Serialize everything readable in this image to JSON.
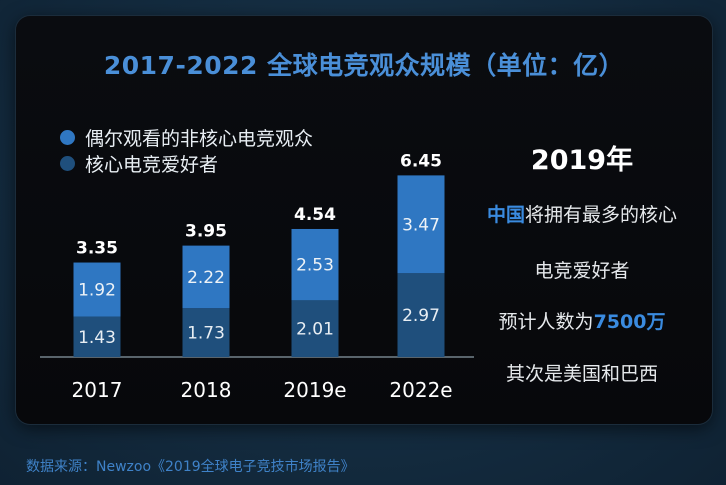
{
  "colors": {
    "segment_non_core": "#2f77c2",
    "segment_core": "#1f4f7c",
    "title": "#4a8fd8",
    "highlight": "#3a8be0"
  },
  "chart_data": {
    "type": "bar",
    "stacked": true,
    "title": "2017-2022 全球电竞观众规模（单位：亿）",
    "categories": [
      "2017",
      "2018",
      "2019e",
      "2022e"
    ],
    "series": [
      {
        "name": "核心电竞爱好者",
        "values": [
          1.43,
          1.73,
          2.01,
          2.97
        ]
      },
      {
        "name": "偶尔观看的非核心电竞观众",
        "values": [
          1.92,
          2.22,
          2.53,
          3.47
        ]
      }
    ],
    "totals": [
      3.35,
      3.95,
      4.54,
      6.45
    ],
    "legend_position": "top-left",
    "grid": false
  },
  "side_text": {
    "year": "2019年",
    "line1_highlight": "中国",
    "line1_rest": "将拥有最多的核心",
    "line2": "电竞爱好者",
    "line3_prefix": "预计人数为",
    "line3_highlight": "7500万",
    "line4": "其次是美国和巴西"
  },
  "source": "数据来源：Newzoo《2019全球电子竞技市场报告》"
}
